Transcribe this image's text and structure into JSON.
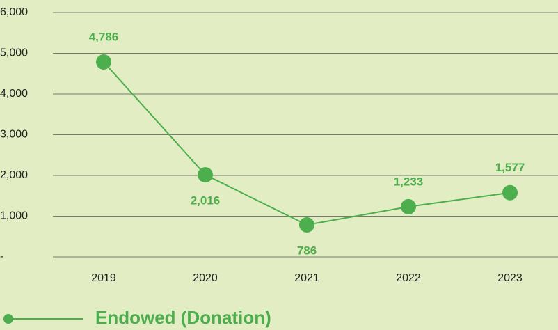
{
  "chart_data": {
    "type": "line",
    "categories": [
      "2019",
      "2020",
      "2021",
      "2022",
      "2023"
    ],
    "series": [
      {
        "name": "Endowed (Donation)",
        "color": "#4cae4c",
        "values": [
          4786,
          2016,
          786,
          1233,
          1577
        ],
        "value_labels": [
          "4,786",
          "2,016",
          "786",
          "1,233",
          "1,577"
        ]
      }
    ],
    "ylim": [
      0,
      6000
    ],
    "yticks": [
      {
        "value": 0,
        "label": "-"
      },
      {
        "value": 1000,
        "label": "1,000"
      },
      {
        "value": 2000,
        "label": "2,000"
      },
      {
        "value": 3000,
        "label": "3,000"
      },
      {
        "value": 4000,
        "label": "4,000"
      },
      {
        "value": 5000,
        "label": "5,000"
      },
      {
        "value": 6000,
        "label": "6,000"
      }
    ],
    "grid": true,
    "legend": "bottom-left"
  }
}
